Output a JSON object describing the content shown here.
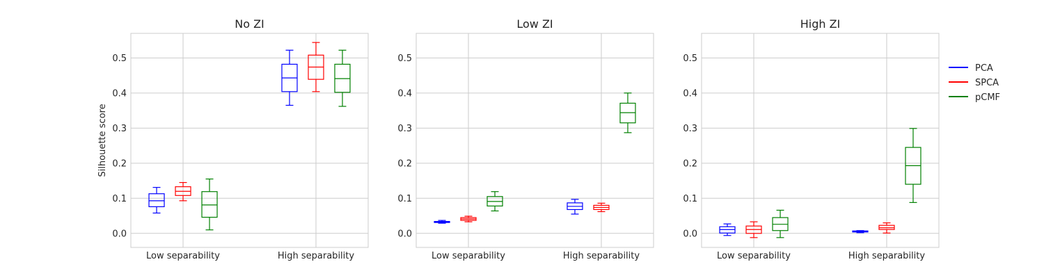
{
  "chart_data": {
    "type": "box",
    "ylabel": "Silhouette score",
    "ylim": [
      -0.04,
      0.57
    ],
    "yticks": [
      "0.0",
      "0.1",
      "0.2",
      "0.3",
      "0.4",
      "0.5"
    ],
    "categories": [
      "Low separability",
      "High separability"
    ],
    "grid": true,
    "legend_position": "right",
    "series_colors": {
      "PCA": "#0000ff",
      "SPCA": "#ff0000",
      "pCMF": "#008000"
    },
    "legend": [
      "PCA",
      "SPCA",
      "pCMF"
    ],
    "panels": [
      {
        "title": "No ZI",
        "boxes": {
          "Low separability": {
            "PCA": {
              "min": 0.058,
              "q1": 0.076,
              "median": 0.093,
              "q3": 0.113,
              "max": 0.131
            },
            "SPCA": {
              "min": 0.093,
              "q1": 0.108,
              "median": 0.12,
              "q3": 0.133,
              "max": 0.145
            },
            "pCMF": {
              "min": 0.01,
              "q1": 0.046,
              "median": 0.081,
              "q3": 0.119,
              "max": 0.155
            }
          },
          "High separability": {
            "PCA": {
              "min": 0.365,
              "q1": 0.404,
              "median": 0.443,
              "q3": 0.482,
              "max": 0.522
            },
            "SPCA": {
              "min": 0.404,
              "q1": 0.439,
              "median": 0.474,
              "q3": 0.508,
              "max": 0.544
            },
            "pCMF": {
              "min": 0.362,
              "q1": 0.402,
              "median": 0.441,
              "q3": 0.482,
              "max": 0.522
            }
          }
        }
      },
      {
        "title": "Low ZI",
        "boxes": {
          "Low separability": {
            "PCA": {
              "min": 0.029,
              "q1": 0.031,
              "median": 0.033,
              "q3": 0.034,
              "max": 0.037
            },
            "SPCA": {
              "min": 0.033,
              "q1": 0.037,
              "median": 0.041,
              "q3": 0.045,
              "max": 0.049
            },
            "pCMF": {
              "min": 0.064,
              "q1": 0.078,
              "median": 0.091,
              "q3": 0.105,
              "max": 0.119
            }
          },
          "High separability": {
            "PCA": {
              "min": 0.055,
              "q1": 0.068,
              "median": 0.077,
              "q3": 0.087,
              "max": 0.097
            },
            "SPCA": {
              "min": 0.062,
              "q1": 0.068,
              "median": 0.074,
              "q3": 0.08,
              "max": 0.086
            },
            "pCMF": {
              "min": 0.287,
              "q1": 0.315,
              "median": 0.344,
              "q3": 0.371,
              "max": 0.4
            }
          }
        }
      },
      {
        "title": "High ZI",
        "boxes": {
          "Low separability": {
            "PCA": {
              "min": -0.006,
              "q1": 0.001,
              "median": 0.011,
              "q3": 0.019,
              "max": 0.027
            },
            "SPCA": {
              "min": -0.012,
              "q1": 0.0,
              "median": 0.011,
              "q3": 0.021,
              "max": 0.033
            },
            "pCMF": {
              "min": -0.012,
              "q1": 0.008,
              "median": 0.026,
              "q3": 0.045,
              "max": 0.066
            }
          },
          "High separability": {
            "PCA": {
              "min": 0.002,
              "q1": 0.004,
              "median": 0.005,
              "q3": 0.007,
              "max": 0.008
            },
            "SPCA": {
              "min": 0.001,
              "q1": 0.011,
              "median": 0.016,
              "q3": 0.023,
              "max": 0.03
            },
            "pCMF": {
              "min": 0.088,
              "q1": 0.14,
              "median": 0.193,
              "q3": 0.245,
              "max": 0.299
            }
          }
        }
      }
    ]
  }
}
